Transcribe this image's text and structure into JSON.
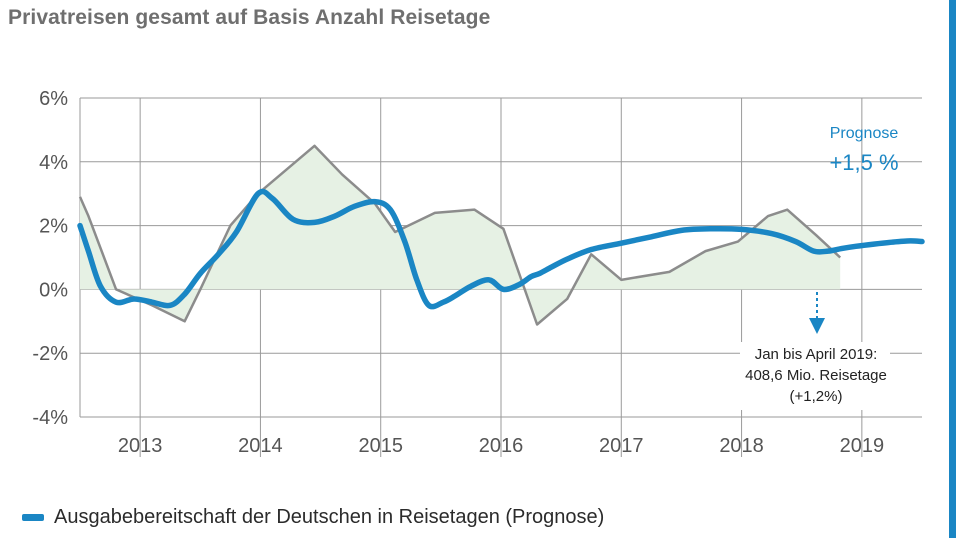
{
  "title": "Privatreisen gesamt auf Basis Anzahl Reisetage",
  "colors": {
    "forecast_line": "#1a86c4",
    "actual_line": "#8c8c8c",
    "area_fill": "#e6f1e4",
    "grid": "#9a9a9a",
    "axis_text": "#555555",
    "accent_rule": "#1a86c4"
  },
  "legend": {
    "label": "Ausgabebereitschaft der Deutschen in Reisetagen (Prognose)"
  },
  "annotations": {
    "prognose_label": "Prognose",
    "prognose_value": "+1,5 %",
    "note_lines": [
      "Jan bis April 2019:",
      "408,6 Mio. Reisetage",
      "(+1,2%)"
    ]
  },
  "chart_data": {
    "type": "line",
    "title": "Privatreisen gesamt auf Basis Anzahl Reisetage",
    "categories": [
      "2013",
      "2014",
      "2015",
      "2016",
      "2017",
      "2018",
      "2019"
    ],
    "yticks": [
      "6%",
      "4%",
      "2%",
      "0%",
      "-2%",
      "-4%"
    ],
    "ylim": [
      -4,
      6
    ],
    "xlim": [
      2012.5,
      2019.5
    ],
    "grid": true,
    "legend_position": "bottom-left",
    "series": [
      {
        "name": "Ausgabebereitschaft der Deutschen in Reisetagen (Prognose)",
        "style": "thick-blue",
        "x": [
          2012.5,
          2012.57,
          2012.67,
          2012.8,
          2012.95,
          2013.1,
          2013.25,
          2013.37,
          2013.5,
          2013.65,
          2013.8,
          2013.98,
          2014.1,
          2014.27,
          2014.45,
          2014.62,
          2014.78,
          2014.95,
          2015.08,
          2015.2,
          2015.3,
          2015.4,
          2015.52,
          2015.62,
          2015.75,
          2015.9,
          2016.02,
          2016.15,
          2016.25,
          2016.32,
          2016.42,
          2016.55,
          2016.75,
          2017.0,
          2017.25,
          2017.5,
          2017.75,
          2018.0,
          2018.25,
          2018.45,
          2018.6,
          2018.72,
          2018.83,
          2018.95,
          2019.1,
          2019.25,
          2019.4,
          2019.5
        ],
        "y": [
          2.0,
          1.2,
          0.1,
          -0.4,
          -0.3,
          -0.4,
          -0.5,
          -0.15,
          0.5,
          1.1,
          1.8,
          3.0,
          2.85,
          2.2,
          2.1,
          2.3,
          2.6,
          2.75,
          2.5,
          1.5,
          0.3,
          -0.5,
          -0.4,
          -0.2,
          0.1,
          0.3,
          0.0,
          0.15,
          0.4,
          0.5,
          0.7,
          0.95,
          1.25,
          1.45,
          1.65,
          1.85,
          1.9,
          1.88,
          1.75,
          1.5,
          1.2,
          1.2,
          1.28,
          1.35,
          1.42,
          1.48,
          1.52,
          1.5
        ]
      },
      {
        "name": "",
        "style": "thin-gray",
        "x": [
          2012.5,
          2012.57,
          2012.8,
          2013.1,
          2013.37,
          2013.5,
          2013.75,
          2013.98,
          2014.45,
          2014.68,
          2014.95,
          2015.12,
          2015.45,
          2015.78,
          2016.02,
          2016.3,
          2016.55,
          2016.75,
          2017.0,
          2017.4,
          2017.7,
          2017.97,
          2018.22,
          2018.38,
          2018.62,
          2018.82
        ],
        "y": [
          2.9,
          2.3,
          0.0,
          -0.5,
          -1.0,
          0.0,
          2.0,
          3.0,
          4.5,
          3.6,
          2.7,
          1.8,
          2.4,
          2.5,
          1.9,
          -1.1,
          -0.3,
          1.1,
          0.3,
          0.55,
          1.2,
          1.5,
          2.3,
          2.5,
          1.7,
          1.0
        ]
      }
    ]
  }
}
